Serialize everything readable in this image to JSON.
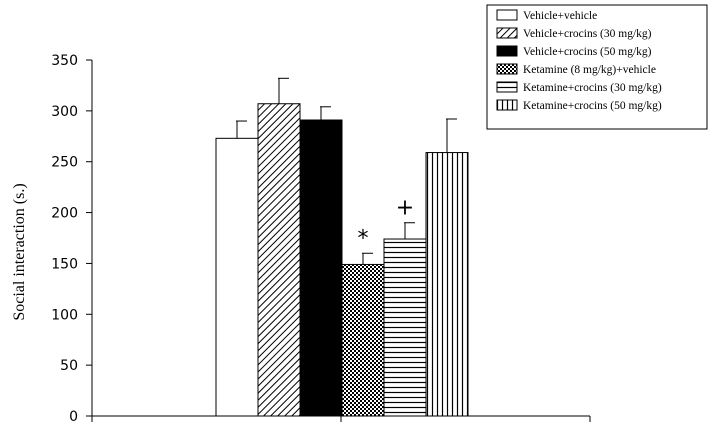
{
  "chart_data": {
    "type": "bar",
    "title": "",
    "xlabel": "",
    "ylabel": "Social interaction (s.)",
    "ylim": [
      0,
      350
    ],
    "yticks": [
      "0",
      "50",
      "100",
      "150",
      "200",
      "250",
      "300",
      "350"
    ],
    "grid": false,
    "legend_position": "top-right",
    "series": [
      {
        "name": "Vehicle+vehicle",
        "value": 273,
        "error": 17,
        "pattern": "white",
        "annotation": ""
      },
      {
        "name": "Vehicle+crocins (30 mg/kg)",
        "value": 307,
        "error": 25,
        "pattern": "diagonal",
        "annotation": ""
      },
      {
        "name": "Vehicle+crocins (50 mg/kg)",
        "value": 291,
        "error": 13,
        "pattern": "black",
        "annotation": ""
      },
      {
        "name": "Ketamine (8 mg/kg)+vehicle",
        "value": 149,
        "error": 11,
        "pattern": "crosshatch",
        "annotation": "*"
      },
      {
        "name": "Ketamine+crocins (30 mg/kg)",
        "value": 174,
        "error": 16,
        "pattern": "horizontal",
        "annotation": "+"
      },
      {
        "name": "Ketamine+crocins (50 mg/kg)",
        "value": 259,
        "error": 33,
        "pattern": "vertical",
        "annotation": ""
      }
    ]
  }
}
